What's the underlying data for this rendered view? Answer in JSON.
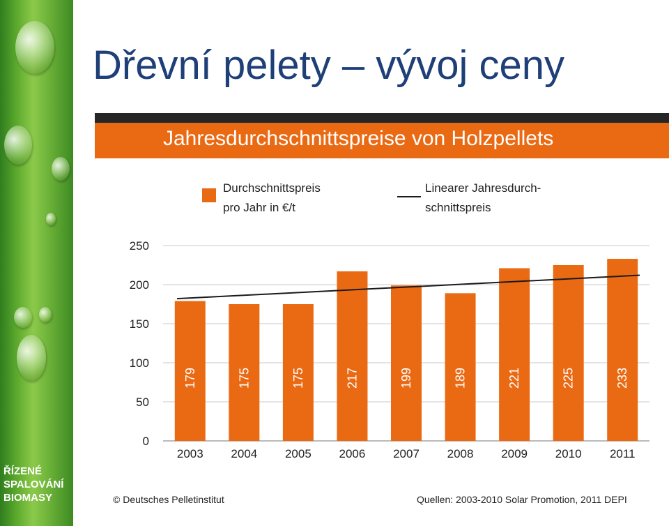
{
  "slide": {
    "title": "Dřevní pelety – vývoj ceny",
    "side_label": [
      "ŘÍZENÉ",
      "SPALOVÁNÍ",
      "BIOMASY"
    ]
  },
  "chart_data": {
    "type": "bar",
    "title": "Jahresdurchschnittspreise von Holzpellets",
    "categories": [
      "2003",
      "2004",
      "2005",
      "2006",
      "2007",
      "2008",
      "2009",
      "2010",
      "2011"
    ],
    "series": [
      {
        "name": "Durchschnittspreis pro Jahr in €/t",
        "values": [
          179,
          175,
          175,
          217,
          199,
          189,
          221,
          225,
          233
        ],
        "color": "#ea6a14"
      }
    ],
    "trendline": {
      "name": "Linearer Jahresdurchschnittspreis",
      "start": 182,
      "end": 212,
      "color": "#1a1a1a"
    },
    "legend": [
      {
        "lines": [
          "Durchschnittspreis",
          "pro Jahr in €/t"
        ]
      },
      {
        "lines": [
          "Linearer Jahresdurch-",
          "schnittspreis"
        ]
      }
    ],
    "ylim": [
      0,
      250
    ],
    "yticks": [
      "0",
      "50",
      "100",
      "150",
      "200",
      "250"
    ],
    "grid": true,
    "legend_position": "top",
    "credit_left": "© Deutsches Pelletinstitut",
    "credit_right": "Quellen: 2003-2010 Solar Promotion, 2011 DEPI"
  }
}
